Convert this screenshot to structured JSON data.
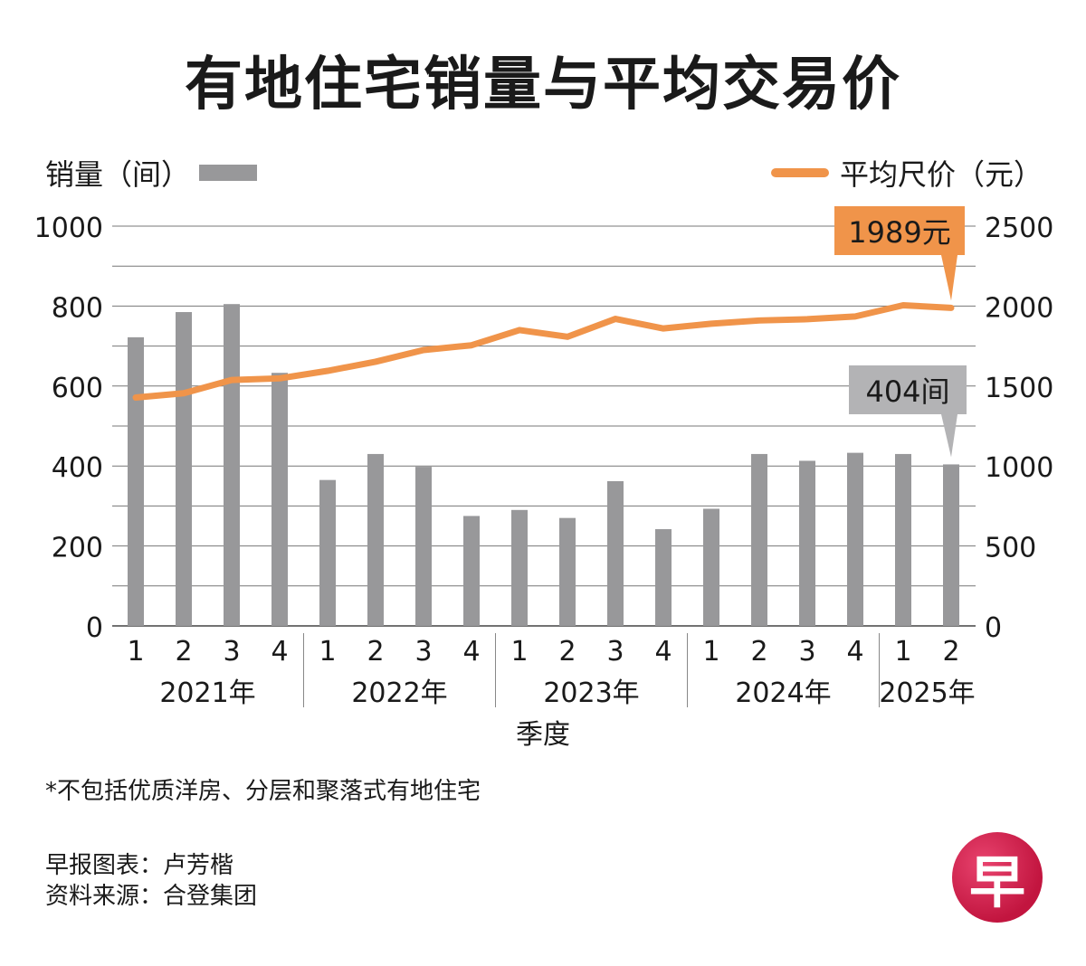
{
  "title": "有地住宅销量与平均交易价",
  "legend": {
    "left_label": "销量（间）",
    "right_label": "平均尺价（元）"
  },
  "colors": {
    "bar": "#98989a",
    "line": "#f0944a",
    "callout_price_bg": "#f0944a",
    "callout_units_bg": "#b3b3b5",
    "logo": "#d11f4b"
  },
  "chart_data": {
    "type": "bar+line",
    "title": "有地住宅销量与平均交易价",
    "xlabel": "季度",
    "ylabel_left": "销量（间）",
    "ylabel_right": "平均尺价（元）",
    "ylim_left": [
      0,
      1000
    ],
    "ylim_right": [
      0,
      2500
    ],
    "yticks_left": [
      "0",
      "200",
      "400",
      "600",
      "800",
      "1000"
    ],
    "yticks_right": [
      "0",
      "500",
      "1000",
      "1500",
      "2000",
      "2500"
    ],
    "quarters": [
      "1",
      "2",
      "3",
      "4",
      "1",
      "2",
      "3",
      "4",
      "1",
      "2",
      "3",
      "4",
      "1",
      "2",
      "3",
      "4",
      "1",
      "2"
    ],
    "year_groups": [
      {
        "label": "2021年",
        "count": 4
      },
      {
        "label": "2022年",
        "count": 4
      },
      {
        "label": "2023年",
        "count": 4
      },
      {
        "label": "2024年",
        "count": 4
      },
      {
        "label": "2025年",
        "count": 2
      }
    ],
    "series": [
      {
        "name": "销量（间）",
        "type": "bar",
        "axis": "left",
        "values": [
          722,
          785,
          805,
          633,
          365,
          430,
          398,
          275,
          290,
          270,
          362,
          242,
          293,
          430,
          413,
          433,
          430,
          404
        ]
      },
      {
        "name": "平均尺价（元）",
        "type": "line",
        "axis": "right",
        "values": [
          1428,
          1455,
          1538,
          1548,
          1595,
          1652,
          1725,
          1755,
          1850,
          1808,
          1920,
          1860,
          1890,
          1910,
          1918,
          1935,
          2005,
          1989
        ]
      }
    ],
    "annotations": [
      {
        "text": "1989元",
        "series": "平均尺价（元）",
        "index": 17
      },
      {
        "text": "404间",
        "series": "销量（间）",
        "index": 17
      }
    ]
  },
  "footnote": "*不包括优质洋房、分层和聚落式有地住宅",
  "credits": {
    "chart_by": "早报图表：卢芳楷",
    "source": "资料来源：合登集团"
  },
  "logo": {
    "text": "早"
  }
}
